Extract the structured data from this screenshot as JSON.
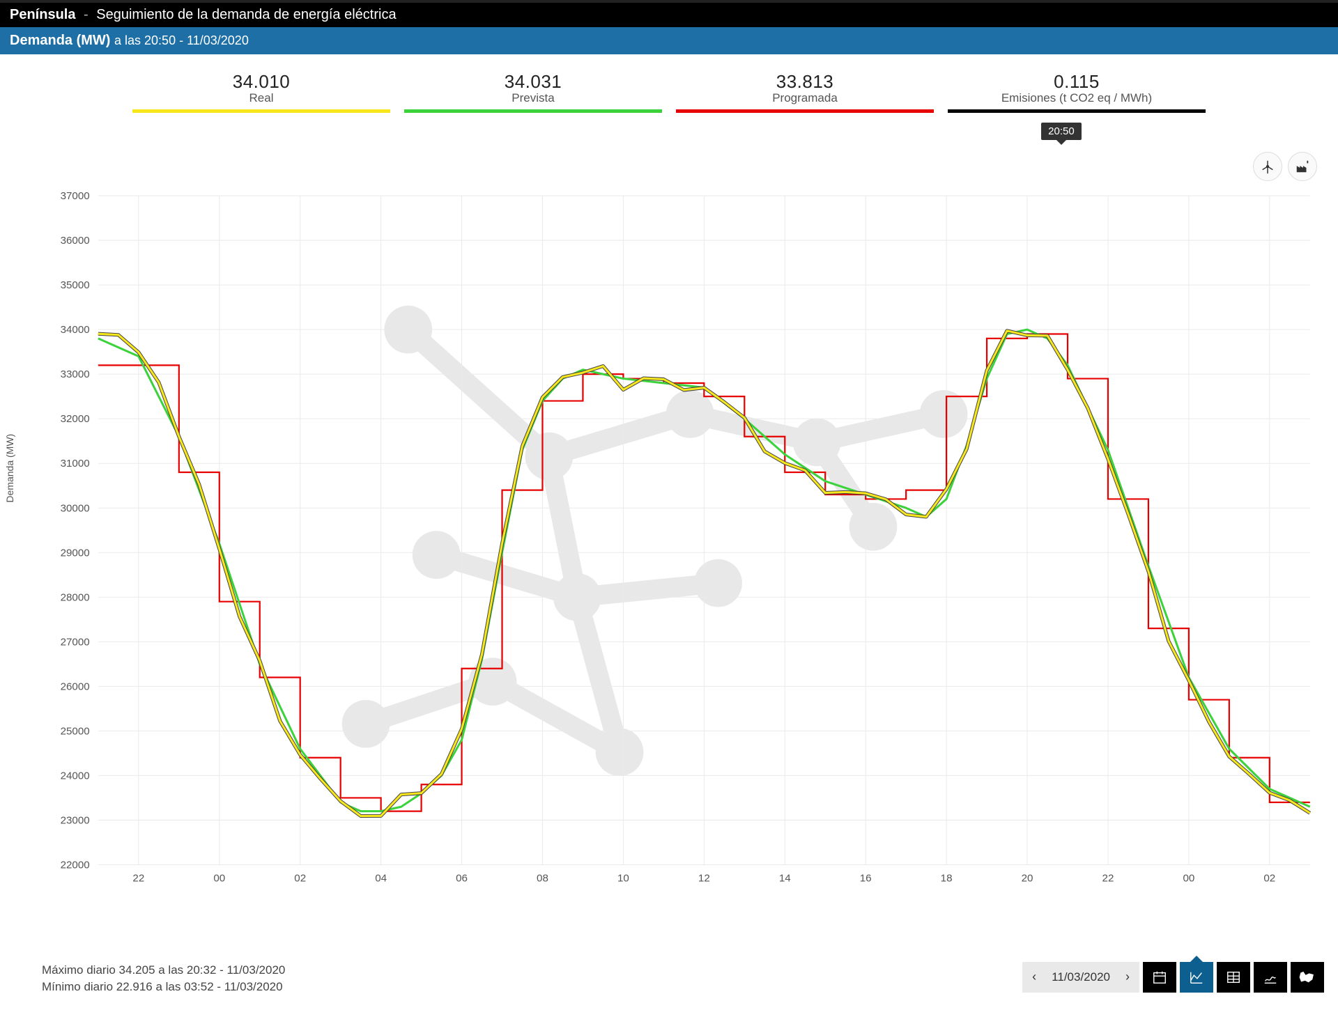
{
  "header": {
    "region": "Península",
    "separator": "-",
    "title": "Seguimiento de la demanda de energía eléctrica"
  },
  "subheader": {
    "label_bold": "Demanda (MW)",
    "label_rest": "a las 20:50 - 11/03/2020"
  },
  "legend": [
    {
      "value": "34.010",
      "label": "Real",
      "color": "#f8e71c"
    },
    {
      "value": "34.031",
      "label": "Prevista",
      "color": "#3bd23b"
    },
    {
      "value": "33.813",
      "label": "Programada",
      "color": "#e60000"
    },
    {
      "value": "0.115",
      "label": "Emisiones (t CO2 eq / MWh)",
      "color": "#000000"
    }
  ],
  "chart": {
    "ylabel": "Demanda (MW)",
    "ylim": [
      22000,
      37000
    ],
    "ytick_step": 1000,
    "xticks_hours": [
      22,
      0,
      2,
      4,
      6,
      8,
      10,
      12,
      14,
      16,
      18,
      20,
      22,
      0,
      2
    ],
    "x_start_hour": 21,
    "x_span_hours": 30,
    "background": "#ffffff",
    "grid_color": "#eaeaea",
    "watermark_color": "#e8e8e8",
    "series": {
      "programada": {
        "color": "#e60000",
        "width": 2.2,
        "type": "step",
        "points_hour_val": [
          [
            21,
            33200
          ],
          [
            22,
            33200
          ],
          [
            22,
            33200
          ],
          [
            23,
            33200
          ],
          [
            23,
            30800
          ],
          [
            24,
            30800
          ],
          [
            24,
            27900
          ],
          [
            25,
            27900
          ],
          [
            25,
            26200
          ],
          [
            26,
            26200
          ],
          [
            26,
            24400
          ],
          [
            27,
            24400
          ],
          [
            27,
            23500
          ],
          [
            28,
            23500
          ],
          [
            28,
            23200
          ],
          [
            29,
            23200
          ],
          [
            29,
            23800
          ],
          [
            30,
            23800
          ],
          [
            30,
            26400
          ],
          [
            31,
            26400
          ],
          [
            31,
            30400
          ],
          [
            32,
            30400
          ],
          [
            32,
            32400
          ],
          [
            33,
            32400
          ],
          [
            33,
            33000
          ],
          [
            34,
            33000
          ],
          [
            34,
            32900
          ],
          [
            35,
            32900
          ],
          [
            35,
            32800
          ],
          [
            36,
            32800
          ],
          [
            36,
            32500
          ],
          [
            37,
            32500
          ],
          [
            37,
            31600
          ],
          [
            38,
            31600
          ],
          [
            38,
            30800
          ],
          [
            39,
            30800
          ],
          [
            39,
            30300
          ],
          [
            40,
            30300
          ],
          [
            40,
            30200
          ],
          [
            41,
            30200
          ],
          [
            41,
            30400
          ],
          [
            42,
            30400
          ],
          [
            42,
            32500
          ],
          [
            43,
            32500
          ],
          [
            43,
            33800
          ],
          [
            44,
            33800
          ],
          [
            44,
            33900
          ],
          [
            45,
            33900
          ],
          [
            45,
            32900
          ],
          [
            46,
            32900
          ],
          [
            46,
            30200
          ],
          [
            47,
            30200
          ],
          [
            47,
            27300
          ],
          [
            48,
            27300
          ],
          [
            48,
            25700
          ],
          [
            49,
            25700
          ],
          [
            49,
            24400
          ],
          [
            50,
            24400
          ],
          [
            50,
            23400
          ],
          [
            51,
            23400
          ]
        ]
      },
      "prevista": {
        "color": "#3bd23b",
        "width": 3,
        "type": "smooth",
        "points_hour_val": [
          [
            21,
            33800
          ],
          [
            22,
            33400
          ],
          [
            23,
            31600
          ],
          [
            24,
            29200
          ],
          [
            25,
            26500
          ],
          [
            26,
            24600
          ],
          [
            27,
            23400
          ],
          [
            27.5,
            23200
          ],
          [
            28,
            23200
          ],
          [
            28.5,
            23300
          ],
          [
            29,
            23600
          ],
          [
            29.5,
            24000
          ],
          [
            30,
            24800
          ],
          [
            30.5,
            26600
          ],
          [
            31,
            29000
          ],
          [
            31.5,
            31300
          ],
          [
            32,
            32400
          ],
          [
            32.5,
            32900
          ],
          [
            33,
            33100
          ],
          [
            34,
            32900
          ],
          [
            35,
            32800
          ],
          [
            36,
            32700
          ],
          [
            37,
            32000
          ],
          [
            38,
            31200
          ],
          [
            39,
            30600
          ],
          [
            40,
            30300
          ],
          [
            41,
            30000
          ],
          [
            41.5,
            29800
          ],
          [
            42,
            30200
          ],
          [
            42.5,
            31400
          ],
          [
            43,
            32900
          ],
          [
            43.5,
            33900
          ],
          [
            44,
            34000
          ],
          [
            44.5,
            33800
          ],
          [
            45,
            33200
          ],
          [
            46,
            31300
          ],
          [
            47,
            28700
          ],
          [
            48,
            26200
          ],
          [
            49,
            24600
          ],
          [
            50,
            23700
          ],
          [
            51,
            23300
          ]
        ]
      },
      "real": {
        "color": "#f8e71c",
        "width": 3,
        "stroke": "#555",
        "type": "rough",
        "points_hour_val": [
          [
            21,
            34000
          ],
          [
            21.5,
            33800
          ],
          [
            22,
            33500
          ],
          [
            22.5,
            32800
          ],
          [
            23,
            31700
          ],
          [
            23.5,
            30400
          ],
          [
            24,
            29100
          ],
          [
            24.5,
            27700
          ],
          [
            25,
            26400
          ],
          [
            25.5,
            25300
          ],
          [
            26,
            24500
          ],
          [
            26.5,
            23900
          ],
          [
            27,
            23400
          ],
          [
            27.5,
            23100
          ],
          [
            28,
            23200
          ],
          [
            28.5,
            23400
          ],
          [
            29,
            23700
          ],
          [
            29.5,
            24100
          ],
          [
            30,
            24900
          ],
          [
            30.5,
            26800
          ],
          [
            31,
            29200
          ],
          [
            31.5,
            31400
          ],
          [
            32,
            32400
          ],
          [
            32.5,
            33000
          ],
          [
            33,
            33100
          ],
          [
            33.5,
            33000
          ],
          [
            34,
            32800
          ],
          [
            34.5,
            32900
          ],
          [
            35,
            32800
          ],
          [
            35.5,
            32700
          ],
          [
            36,
            32700
          ],
          [
            36.5,
            32400
          ],
          [
            37,
            31900
          ],
          [
            37.5,
            31400
          ],
          [
            38,
            31000
          ],
          [
            38.5,
            30700
          ],
          [
            39,
            30500
          ],
          [
            39.5,
            30300
          ],
          [
            40,
            30300
          ],
          [
            40.5,
            30200
          ],
          [
            41,
            29900
          ],
          [
            41.5,
            29800
          ],
          [
            42,
            30300
          ],
          [
            42.5,
            31500
          ],
          [
            43,
            33000
          ],
          [
            43.5,
            33900
          ],
          [
            44,
            34000
          ],
          [
            44.5,
            33800
          ],
          [
            45,
            33100
          ],
          [
            45.5,
            32200
          ],
          [
            46,
            31200
          ],
          [
            46.5,
            29800
          ],
          [
            47,
            28500
          ],
          [
            47.5,
            27200
          ],
          [
            48,
            26000
          ],
          [
            48.5,
            25200
          ],
          [
            49,
            24500
          ],
          [
            49.5,
            24000
          ],
          [
            50,
            23600
          ],
          [
            50.5,
            23400
          ],
          [
            51,
            23300
          ]
        ]
      }
    },
    "current_marker": {
      "hour": 44.83,
      "label": "20:50"
    }
  },
  "stats": {
    "max": "Máximo diario 34.205 a las 20:32 - 11/03/2020",
    "min": "Mínimo diario 22.916 a las 03:52 - 11/03/2020"
  },
  "toolbar": {
    "date": "11/03/2020",
    "active_index": 1
  }
}
